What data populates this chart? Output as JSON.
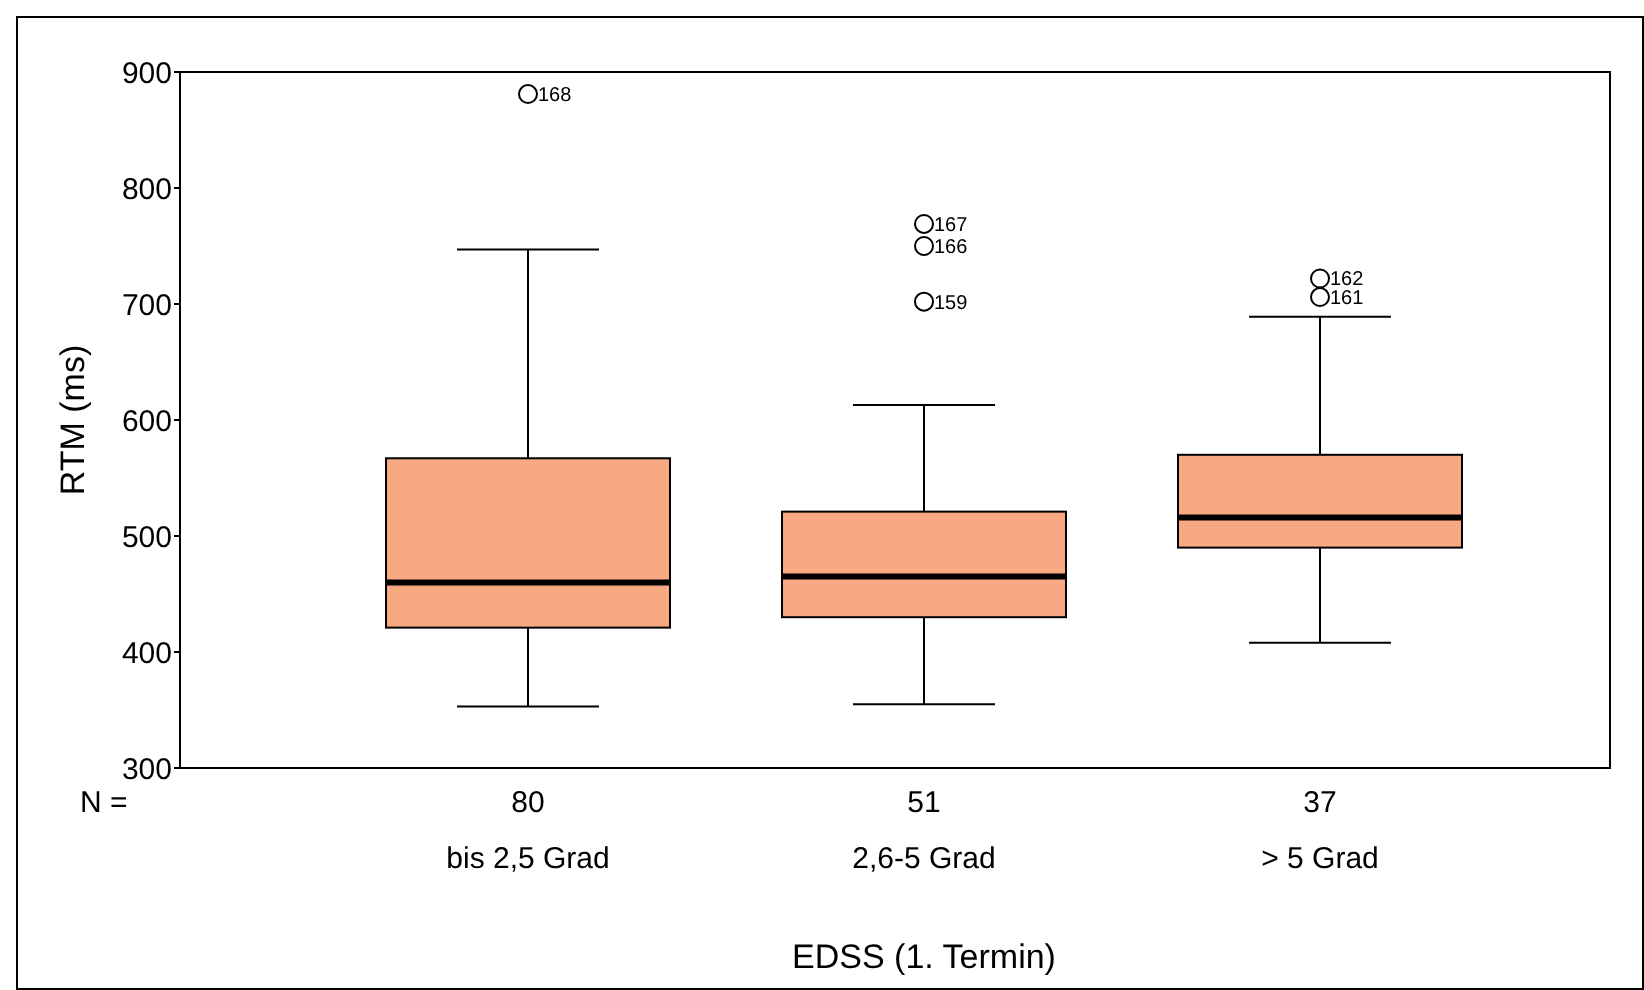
{
  "chart_data": {
    "type": "box",
    "xlabel": "EDSS (1. Termin)",
    "ylabel": "RTM (ms)",
    "categories": [
      "bis 2,5 Grad",
      "2,6-5 Grad",
      "> 5 Grad"
    ],
    "ylim": [
      300,
      900
    ],
    "yticks": [
      300,
      400,
      500,
      600,
      700,
      800,
      900
    ],
    "grid": false,
    "series": [
      {
        "color": "#f9a982",
        "boxes": [
          {
            "low": 353,
            "q1": 421,
            "median": 460,
            "q3": 567,
            "high": 747,
            "outliers": [
              881
            ]
          },
          {
            "low": 355,
            "q1": 430,
            "median": 465,
            "q3": 521,
            "high": 613,
            "outliers": [
              769,
              750,
              702
            ]
          },
          {
            "low": 408,
            "q1": 490,
            "median": 516,
            "q3": 570,
            "high": 689,
            "outliers": [
              722,
              706
            ]
          }
        ]
      }
    ],
    "annotations": [
      "N =",
      "80",
      "51",
      "37",
      "168",
      "167",
      "166",
      "159",
      "162",
      "161"
    ]
  }
}
